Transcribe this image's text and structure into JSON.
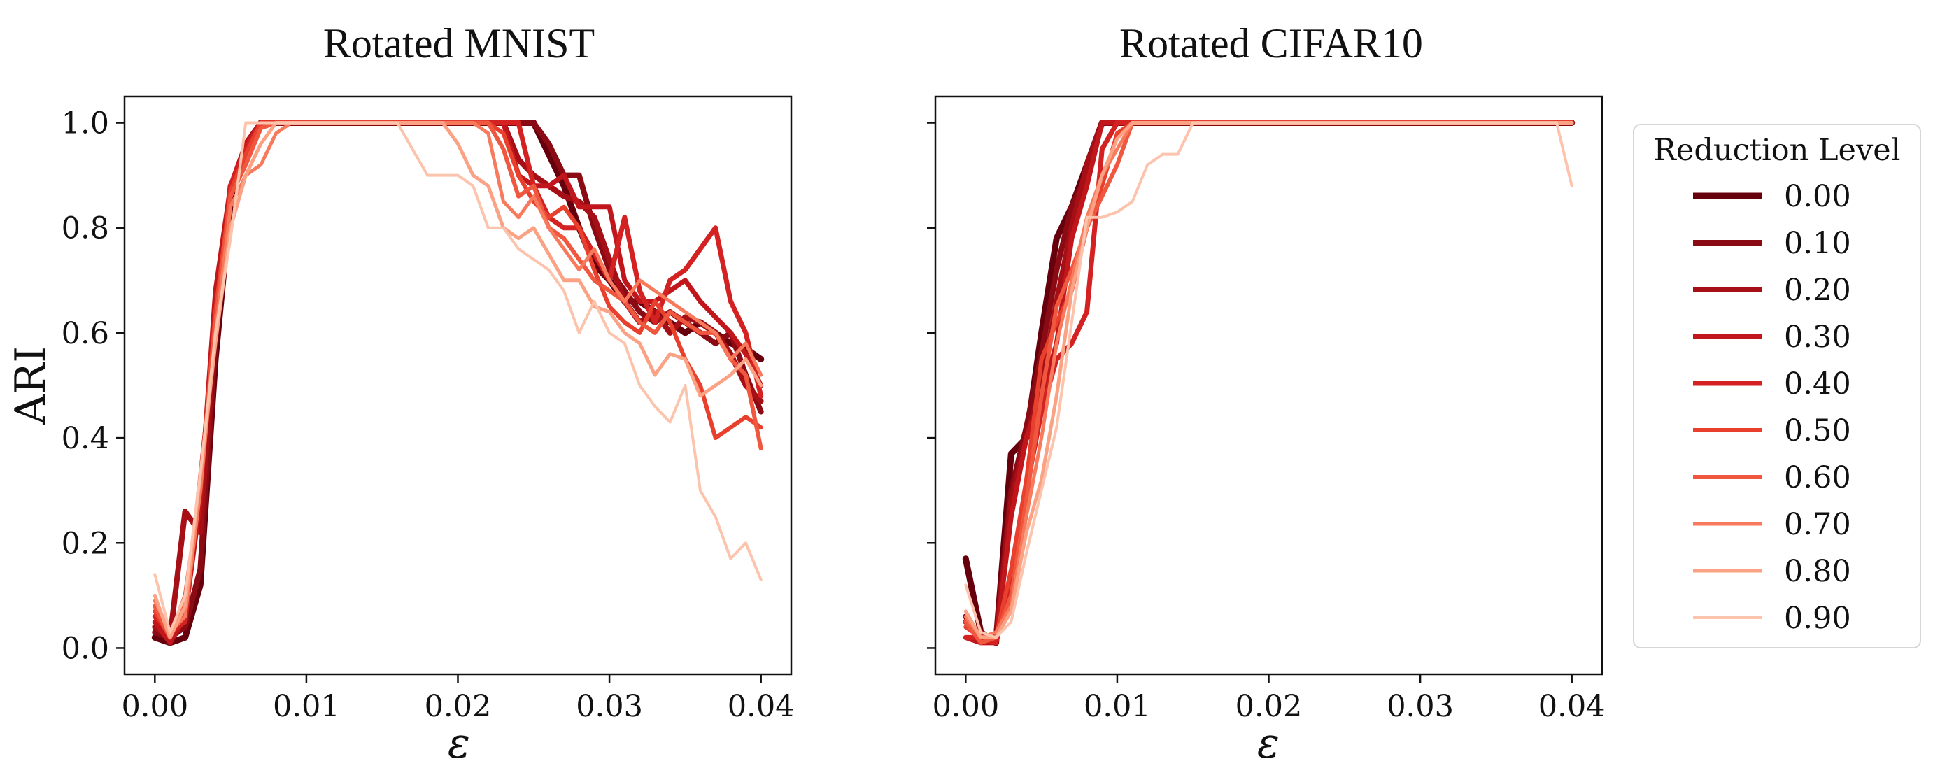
{
  "figure": {
    "ylabel": "ARI",
    "legend": {
      "title": "Reduction Level",
      "placement": "right, outside plot area",
      "entries": [
        "0.00",
        "0.10",
        "0.20",
        "0.30",
        "0.40",
        "0.50",
        "0.60",
        "0.70",
        "0.80",
        "0.90"
      ]
    }
  },
  "chart_data": [
    {
      "type": "line",
      "title": "Rotated MNIST",
      "xlabel": "ε",
      "ylabel": "ARI",
      "xlim": [
        -0.002,
        0.042
      ],
      "ylim": [
        -0.05,
        1.05
      ],
      "xticks": [
        "0.00",
        "0.01",
        "0.02",
        "0.03",
        "0.04"
      ],
      "xtick_values": [
        0,
        0.01,
        0.02,
        0.03,
        0.04
      ],
      "yticks": [
        "0.0",
        "0.2",
        "0.4",
        "0.6",
        "0.8",
        "1.0"
      ],
      "ytick_values": [
        0,
        0.2,
        0.4,
        0.6,
        0.8,
        1.0
      ],
      "grid": false,
      "x": [
        0,
        0.001,
        0.002,
        0.003,
        0.004,
        0.005,
        0.006,
        0.007,
        0.008,
        0.009,
        0.01,
        0.011,
        0.012,
        0.013,
        0.014,
        0.015,
        0.016,
        0.017,
        0.018,
        0.019,
        0.02,
        0.021,
        0.022,
        0.023,
        0.024,
        0.025,
        0.026,
        0.027,
        0.028,
        0.029,
        0.03,
        0.031,
        0.032,
        0.033,
        0.034,
        0.035,
        0.036,
        0.037,
        0.038,
        0.039,
        0.04
      ],
      "series": [
        {
          "name": "0.00",
          "color": "#67000d",
          "width": 9,
          "values": [
            0.02,
            0.01,
            0.02,
            0.12,
            0.55,
            0.85,
            0.95,
            1,
            1,
            1,
            1,
            1,
            1,
            1,
            1,
            1,
            1,
            1,
            1,
            1,
            1,
            1,
            1,
            1,
            1,
            1,
            0.94,
            0.88,
            0.8,
            0.73,
            0.7,
            0.66,
            0.66,
            0.64,
            0.62,
            0.6,
            0.62,
            0.6,
            0.58,
            0.57,
            0.55
          ]
        },
        {
          "name": "0.10",
          "color": "#8b0b14",
          "width": 8,
          "values": [
            0.03,
            0.02,
            0.04,
            0.15,
            0.58,
            0.86,
            0.96,
            1,
            1,
            1,
            1,
            1,
            1,
            1,
            1,
            1,
            1,
            1,
            1,
            1,
            1,
            1,
            1,
            1,
            1,
            1,
            0.96,
            0.9,
            0.9,
            0.8,
            0.72,
            0.68,
            0.64,
            0.62,
            0.64,
            0.62,
            0.6,
            0.58,
            0.6,
            0.52,
            0.45
          ]
        },
        {
          "name": "0.20",
          "color": "#a50f15",
          "width": 8,
          "values": [
            0.04,
            0.02,
            0.26,
            0.22,
            0.62,
            0.88,
            0.94,
            1,
            1,
            1,
            1,
            1,
            1,
            1,
            1,
            1,
            1,
            1,
            1,
            1,
            1,
            1,
            1,
            1,
            0.93,
            0.9,
            0.88,
            0.86,
            0.85,
            0.82,
            0.74,
            0.66,
            0.62,
            0.64,
            0.6,
            0.63,
            0.62,
            0.6,
            0.56,
            0.5,
            0.47
          ]
        },
        {
          "name": "0.30",
          "color": "#c1161b",
          "width": 7,
          "values": [
            0.05,
            0.01,
            0.06,
            0.28,
            0.68,
            0.88,
            0.96,
            1,
            1,
            1,
            1,
            1,
            1,
            1,
            1,
            1,
            1,
            1,
            1,
            1,
            1,
            1,
            1,
            1,
            0.9,
            0.88,
            0.88,
            0.9,
            0.84,
            0.84,
            0.84,
            0.7,
            0.66,
            0.66,
            0.68,
            0.7,
            0.66,
            0.63,
            0.6,
            0.56,
            0.5
          ]
        },
        {
          "name": "0.40",
          "color": "#d42121",
          "width": 7,
          "values": [
            0.06,
            0.03,
            0.05,
            0.32,
            0.6,
            0.88,
            0.95,
            1,
            1,
            1,
            1,
            1,
            1,
            1,
            1,
            1,
            1,
            1,
            1,
            1,
            1,
            1,
            1,
            1,
            1,
            0.88,
            0.82,
            0.8,
            0.8,
            0.75,
            0.7,
            0.82,
            0.68,
            0.62,
            0.7,
            0.72,
            0.76,
            0.8,
            0.66,
            0.6,
            0.48
          ]
        },
        {
          "name": "0.50",
          "color": "#e8402d",
          "width": 6,
          "values": [
            0.07,
            0.02,
            0.08,
            0.3,
            0.64,
            0.87,
            0.94,
            1,
            1,
            1,
            1,
            1,
            1,
            1,
            1,
            1,
            1,
            1,
            1,
            1,
            1,
            1,
            1,
            0.98,
            0.9,
            0.85,
            0.82,
            0.84,
            0.8,
            0.72,
            0.65,
            0.62,
            0.6,
            0.66,
            0.62,
            0.55,
            0.5,
            0.4,
            0.42,
            0.44,
            0.42
          ]
        },
        {
          "name": "0.60",
          "color": "#f0573f",
          "width": 6,
          "values": [
            0.08,
            0.02,
            0.1,
            0.3,
            0.62,
            0.86,
            0.92,
            0.99,
            1,
            1,
            1,
            1,
            1,
            1,
            1,
            1,
            1,
            1,
            1,
            1,
            1,
            1,
            1,
            0.95,
            0.86,
            0.88,
            0.8,
            0.78,
            0.74,
            0.7,
            0.68,
            0.66,
            0.62,
            0.6,
            0.64,
            0.62,
            0.6,
            0.6,
            0.55,
            0.52,
            0.38
          ]
        },
        {
          "name": "0.70",
          "color": "#f87a5c",
          "width": 5,
          "values": [
            0.09,
            0.03,
            0.06,
            0.3,
            0.6,
            0.84,
            0.9,
            0.92,
            0.98,
            1,
            1,
            1,
            1,
            1,
            1,
            1,
            1,
            1,
            1,
            1,
            1,
            1,
            0.98,
            0.85,
            0.82,
            0.86,
            0.8,
            0.76,
            0.72,
            0.76,
            0.7,
            0.66,
            0.7,
            0.68,
            0.66,
            0.64,
            0.62,
            0.6,
            0.55,
            0.58,
            0.52
          ]
        },
        {
          "name": "0.80",
          "color": "#fba184",
          "width": 5,
          "values": [
            0.1,
            0.02,
            0.08,
            0.33,
            0.58,
            0.8,
            0.9,
            0.96,
            1,
            1,
            1,
            1,
            1,
            1,
            1,
            1,
            1,
            1,
            1,
            1,
            0.96,
            0.9,
            0.88,
            0.8,
            0.78,
            0.8,
            0.75,
            0.7,
            0.7,
            0.65,
            0.64,
            0.6,
            0.58,
            0.52,
            0.56,
            0.55,
            0.48,
            0.5,
            0.52,
            0.55,
            0.5
          ]
        },
        {
          "name": "0.90",
          "color": "#fcc4ad",
          "width": 4,
          "values": [
            0.14,
            0.03,
            0.1,
            0.33,
            0.6,
            0.78,
            1,
            1,
            1,
            1,
            1,
            1,
            1,
            1,
            1,
            1,
            1,
            0.95,
            0.9,
            0.9,
            0.9,
            0.88,
            0.8,
            0.8,
            0.76,
            0.74,
            0.72,
            0.68,
            0.6,
            0.66,
            0.6,
            0.58,
            0.5,
            0.46,
            0.43,
            0.5,
            0.3,
            0.25,
            0.17,
            0.2,
            0.13
          ]
        }
      ]
    },
    {
      "type": "line",
      "title": "Rotated CIFAR10",
      "xlabel": "ε",
      "xlim": [
        -0.002,
        0.042
      ],
      "ylim": [
        -0.05,
        1.05
      ],
      "xticks": [
        "0.00",
        "0.01",
        "0.02",
        "0.03",
        "0.04"
      ],
      "xtick_values": [
        0,
        0.01,
        0.02,
        0.03,
        0.04
      ],
      "yticks_labeled": false,
      "grid": false,
      "x": [
        0,
        0.001,
        0.002,
        0.003,
        0.004,
        0.005,
        0.006,
        0.007,
        0.008,
        0.009,
        0.01,
        0.011,
        0.012,
        0.013,
        0.014,
        0.015,
        0.016,
        0.017,
        0.018,
        0.019,
        0.02,
        0.021,
        0.022,
        0.023,
        0.024,
        0.025,
        0.026,
        0.027,
        0.028,
        0.029,
        0.03,
        0.031,
        0.032,
        0.033,
        0.034,
        0.035,
        0.036,
        0.037,
        0.038,
        0.039,
        0.04
      ],
      "series": [
        {
          "name": "0.00",
          "color": "#67000d",
          "width": 9,
          "values": [
            0.17,
            0.03,
            0.01,
            0.37,
            0.4,
            0.6,
            0.78,
            0.84,
            0.92,
            1,
            1,
            1,
            1,
            1,
            1,
            1,
            1,
            1,
            1,
            1,
            1,
            1,
            1,
            1,
            1,
            1,
            1,
            1,
            1,
            1,
            1,
            1,
            1,
            1,
            1,
            1,
            1,
            1,
            1,
            1,
            1
          ]
        },
        {
          "name": "0.10",
          "color": "#8b0b14",
          "width": 8,
          "values": [
            0.06,
            0.02,
            0.02,
            0.3,
            0.42,
            0.56,
            0.72,
            0.84,
            0.9,
            1,
            1,
            1,
            1,
            1,
            1,
            1,
            1,
            1,
            1,
            1,
            1,
            1,
            1,
            1,
            1,
            1,
            1,
            1,
            1,
            1,
            1,
            1,
            1,
            1,
            1,
            1,
            1,
            1,
            1,
            1,
            1
          ]
        },
        {
          "name": "0.20",
          "color": "#a50f15",
          "width": 8,
          "values": [
            0.05,
            0.03,
            0.01,
            0.28,
            0.4,
            0.5,
            0.66,
            0.8,
            0.92,
            1,
            1,
            1,
            1,
            1,
            1,
            1,
            1,
            1,
            1,
            1,
            1,
            1,
            1,
            1,
            1,
            1,
            1,
            1,
            1,
            1,
            1,
            1,
            1,
            1,
            1,
            1,
            1,
            1,
            1,
            1,
            1
          ]
        },
        {
          "name": "0.30",
          "color": "#c1161b",
          "width": 7,
          "values": [
            0.02,
            0.01,
            0.01,
            0.25,
            0.4,
            0.48,
            0.58,
            0.78,
            0.88,
            1,
            1,
            1,
            1,
            1,
            1,
            1,
            1,
            1,
            1,
            1,
            1,
            1,
            1,
            1,
            1,
            1,
            1,
            1,
            1,
            1,
            1,
            1,
            1,
            1,
            1,
            1,
            1,
            1,
            1,
            1,
            1
          ]
        },
        {
          "name": "0.40",
          "color": "#d42121",
          "width": 7,
          "values": [
            0.02,
            0.02,
            0.01,
            0.12,
            0.3,
            0.45,
            0.55,
            0.58,
            0.64,
            0.95,
            1,
            1,
            1,
            1,
            1,
            1,
            1,
            1,
            1,
            1,
            1,
            1,
            1,
            1,
            1,
            1,
            1,
            1,
            1,
            1,
            1,
            1,
            1,
            1,
            1,
            1,
            1,
            1,
            1,
            1,
            1
          ]
        },
        {
          "name": "0.50",
          "color": "#e8402d",
          "width": 6,
          "values": [
            0.04,
            0.02,
            0.02,
            0.15,
            0.32,
            0.55,
            0.62,
            0.68,
            0.8,
            0.88,
            0.98,
            1,
            1,
            1,
            1,
            1,
            1,
            1,
            1,
            1,
            1,
            1,
            1,
            1,
            1,
            1,
            1,
            1,
            1,
            1,
            1,
            1,
            1,
            1,
            1,
            1,
            1,
            1,
            1,
            1,
            1
          ]
        },
        {
          "name": "0.60",
          "color": "#f0573f",
          "width": 6,
          "values": [
            0.05,
            0.01,
            0.02,
            0.1,
            0.28,
            0.48,
            0.65,
            0.72,
            0.8,
            0.86,
            0.92,
            1,
            1,
            1,
            1,
            1,
            1,
            1,
            1,
            1,
            1,
            1,
            1,
            1,
            1,
            1,
            1,
            1,
            1,
            1,
            1,
            1,
            1,
            1,
            1,
            1,
            1,
            1,
            1,
            1,
            1
          ]
        },
        {
          "name": "0.70",
          "color": "#f87a5c",
          "width": 5,
          "values": [
            0.06,
            0.02,
            0.03,
            0.08,
            0.25,
            0.4,
            0.58,
            0.7,
            0.82,
            0.9,
            0.95,
            1,
            1,
            1,
            1,
            1,
            1,
            1,
            1,
            1,
            1,
            1,
            1,
            1,
            1,
            1,
            1,
            1,
            1,
            1,
            1,
            1,
            1,
            1,
            1,
            1,
            1,
            1,
            1,
            1,
            1
          ]
        },
        {
          "name": "0.80",
          "color": "#fba184",
          "width": 5,
          "values": [
            0.07,
            0.02,
            0.02,
            0.07,
            0.22,
            0.32,
            0.48,
            0.68,
            0.8,
            0.9,
            0.97,
            1,
            1,
            1,
            1,
            1,
            1,
            1,
            1,
            1,
            1,
            1,
            1,
            1,
            1,
            1,
            1,
            1,
            1,
            1,
            1,
            1,
            1,
            1,
            1,
            1,
            1,
            1,
            1,
            1,
            1
          ]
        },
        {
          "name": "0.90",
          "color": "#fcc4ad",
          "width": 4,
          "values": [
            0.12,
            0.03,
            0.02,
            0.05,
            0.18,
            0.3,
            0.42,
            0.62,
            0.82,
            0.82,
            0.83,
            0.85,
            0.92,
            0.94,
            0.94,
            1,
            1,
            1,
            1,
            1,
            1,
            1,
            1,
            1,
            1,
            1,
            1,
            1,
            1,
            1,
            1,
            1,
            1,
            1,
            1,
            1,
            1,
            1,
            1,
            1,
            0.88
          ]
        }
      ]
    }
  ]
}
